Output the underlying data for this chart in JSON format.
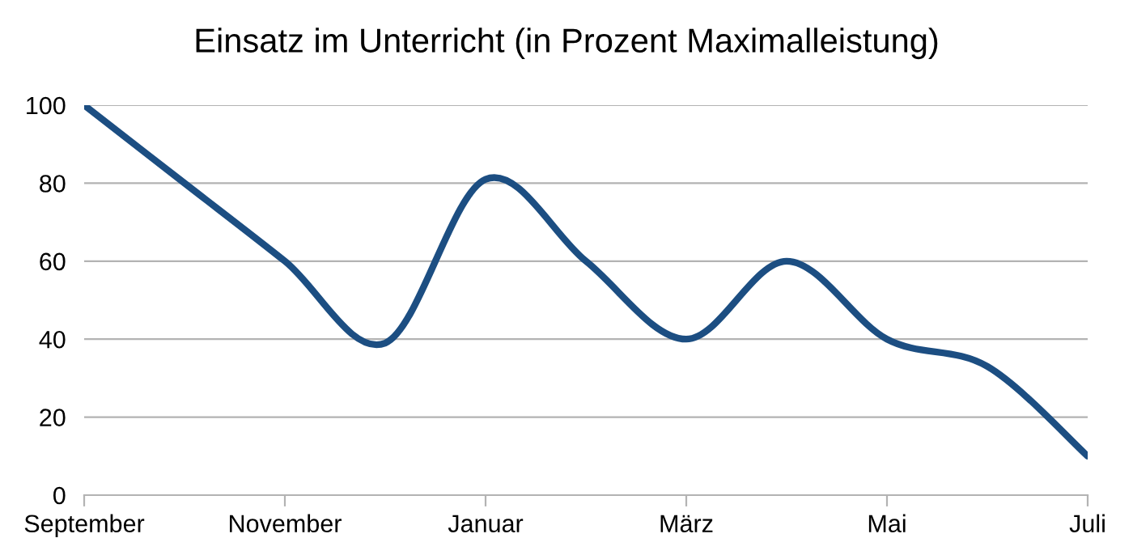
{
  "chart_data": {
    "type": "line",
    "title": "Einsatz im Unterricht (in Prozent Maximalleistung)",
    "categories": [
      "September",
      null,
      "November",
      null,
      "Januar",
      null,
      "März",
      null,
      "Mai",
      null,
      "Juli"
    ],
    "series": [
      {
        "color": "#1c4e82",
        "values": [
          100,
          80,
          60,
          39,
          81,
          60,
          40,
          60,
          40,
          33,
          10
        ]
      }
    ],
    "ylim": [
      0,
      100
    ],
    "yticks": [
      0,
      20,
      40,
      60,
      80,
      100
    ],
    "grid": "y",
    "legend": false,
    "marker": "none",
    "line_style": "solid"
  }
}
